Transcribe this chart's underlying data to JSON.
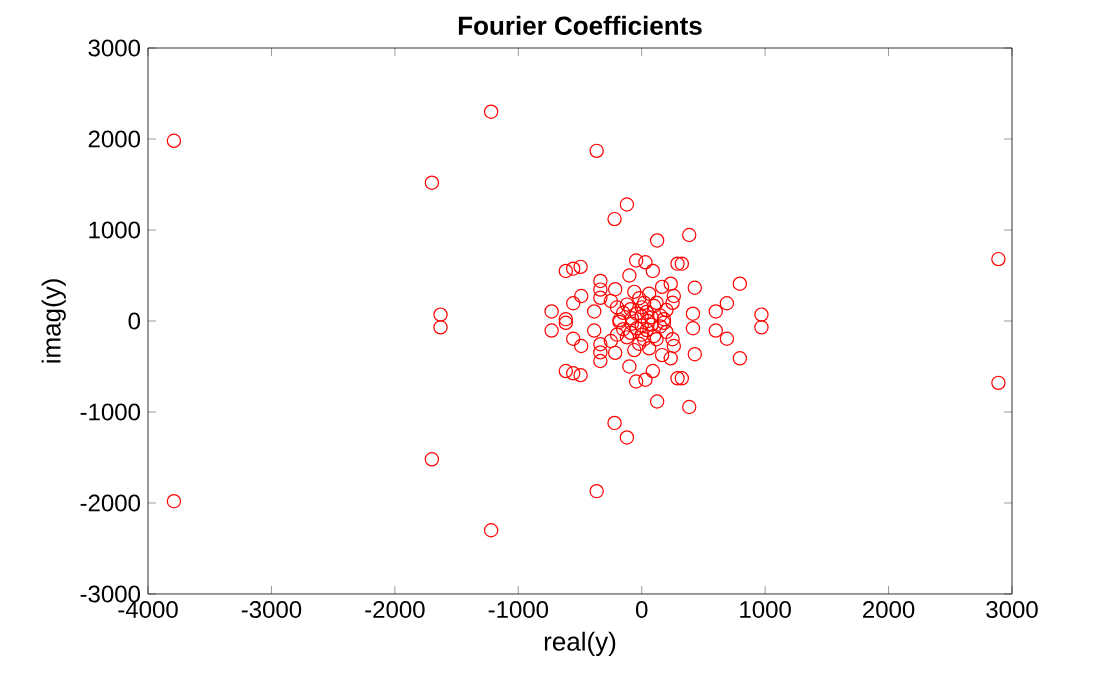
{
  "chart_data": {
    "type": "scatter",
    "title": "Fourier Coefficients",
    "xlabel": "real(y)",
    "ylabel": "imag(y)",
    "xlim": [
      -4000,
      3000
    ],
    "ylim": [
      -3000,
      3000
    ],
    "xticks": [
      -4000,
      -3000,
      -2000,
      -1000,
      0,
      1000,
      2000,
      3000
    ],
    "yticks": [
      -3000,
      -2000,
      -1000,
      0,
      1000,
      2000,
      3000
    ],
    "marker": "circle",
    "grid": false,
    "series": [
      {
        "color": "#ff0000",
        "x": [
          -3790,
          -1220,
          -1700,
          -365,
          -120,
          -220,
          125,
          385,
          2890,
          -1630,
          795,
          690,
          600,
          970,
          430,
          415,
          290,
          325,
          -45,
          30,
          90,
          -495,
          -555,
          -615,
          -490,
          -555,
          -730,
          -615,
          -335,
          -335,
          -335,
          -215,
          -100,
          -385,
          235,
          260,
          165,
          -90,
          100,
          0,
          40,
          -40,
          80,
          -80,
          150,
          -150,
          20,
          -20,
          120,
          -120,
          200,
          -200,
          60,
          -60,
          180,
          -180,
          0,
          250,
          -250,
          -3790,
          -1220,
          -1700,
          -365,
          -120,
          -220,
          125,
          385,
          2890,
          -1630,
          795,
          690,
          600,
          970,
          430,
          415,
          290,
          325,
          -45,
          30,
          90,
          -495,
          -555,
          -615,
          -490,
          -555,
          -730,
          -615,
          -335,
          -335,
          -335,
          -215,
          -100,
          -385,
          235,
          260,
          165,
          -90,
          100,
          0,
          40,
          -40,
          80,
          -80,
          150,
          -150,
          20,
          -20,
          120,
          -120,
          200,
          -200,
          60,
          -60,
          180,
          -180,
          0,
          250,
          -250,
          50
        ],
        "values": [
          1980,
          2300,
          1520,
          1870,
          1280,
          1120,
          885,
          945,
          680,
          70,
          410,
          195,
          105,
          70,
          365,
          80,
          630,
          630,
          665,
          645,
          550,
          595,
          575,
          550,
          275,
          195,
          105,
          20,
          440,
          345,
          255,
          350,
          500,
          105,
          410,
          275,
          375,
          130,
          165,
          50,
          100,
          80,
          40,
          30,
          60,
          90,
          200,
          250,
          200,
          180,
          120,
          150,
          300,
          320,
          20,
          10,
          150,
          200,
          220,
          -1980,
          -2300,
          -1520,
          -1870,
          -1280,
          -1120,
          -885,
          -945,
          -680,
          -70,
          -410,
          -195,
          -105,
          -70,
          -365,
          -80,
          -630,
          -630,
          -665,
          -645,
          -550,
          -595,
          -575,
          -550,
          -275,
          -195,
          -105,
          -20,
          -440,
          -345,
          -255,
          -350,
          -500,
          -105,
          -410,
          -275,
          -375,
          -130,
          -165,
          -50,
          -100,
          -80,
          -40,
          -30,
          -60,
          -90,
          -200,
          -250,
          -200,
          -180,
          -120,
          -150,
          -300,
          -320,
          -20,
          -10,
          -150,
          -200,
          -220,
          0
        ]
      }
    ]
  }
}
